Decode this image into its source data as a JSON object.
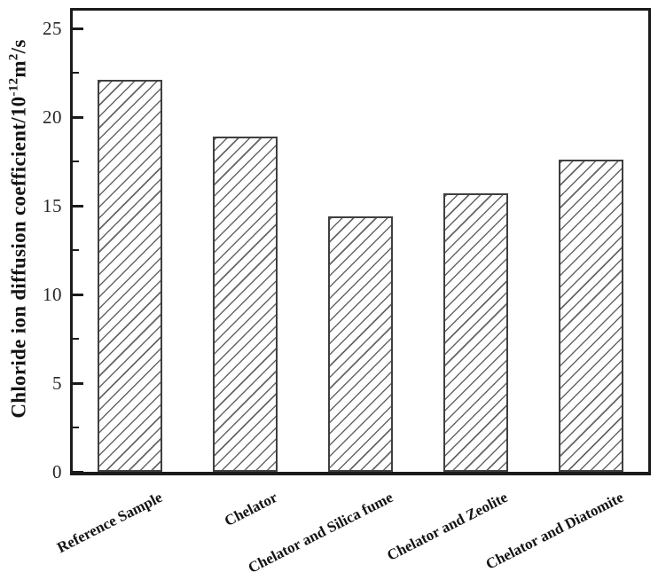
{
  "figure": {
    "background": "#ffffff",
    "kind": "static bar chart figure"
  },
  "chart_data": {
    "type": "bar",
    "title": "",
    "xlabel": "",
    "ylabel": "Chloride ion diffusion coefficient/10⁻¹²m²/s",
    "ylabel_parts": {
      "prefix": "Chloride ion diffusion coefficient/10",
      "sup1": "-12",
      "mid": "m",
      "sup2": "2",
      "suffix": "/s"
    },
    "categories": [
      "Reference Sample",
      "Chelator",
      "Chelator and Silica fume",
      "Chelator and Zeolite",
      "Chelator and Diatomite"
    ],
    "values": [
      22.1,
      18.9,
      14.4,
      15.7,
      17.6
    ],
    "ylim": [
      0,
      26
    ],
    "yticks_major": [
      0,
      5,
      10,
      15,
      20,
      25
    ],
    "ytick_labels": [
      "0",
      "5",
      "10",
      "15",
      "20",
      "25"
    ],
    "yticks_minor": [
      2.5,
      7.5,
      12.5,
      17.5,
      22.5
    ],
    "grid": false,
    "legend": null,
    "layout_hints": {
      "xlabel_rotation_deg": -27,
      "ticks_direction": "in",
      "box_spines": true
    },
    "styles": {
      "bar_fill": "#ffffff",
      "hatch_pattern": "forward-diagonal",
      "hatch_color": "#666666",
      "bar_border_color": "#3f3f3f",
      "spine_color": "#1b1b1b",
      "tick_color": "#1b1b1b",
      "tick_label_color": "#262626",
      "label_color": "#141414"
    }
  }
}
